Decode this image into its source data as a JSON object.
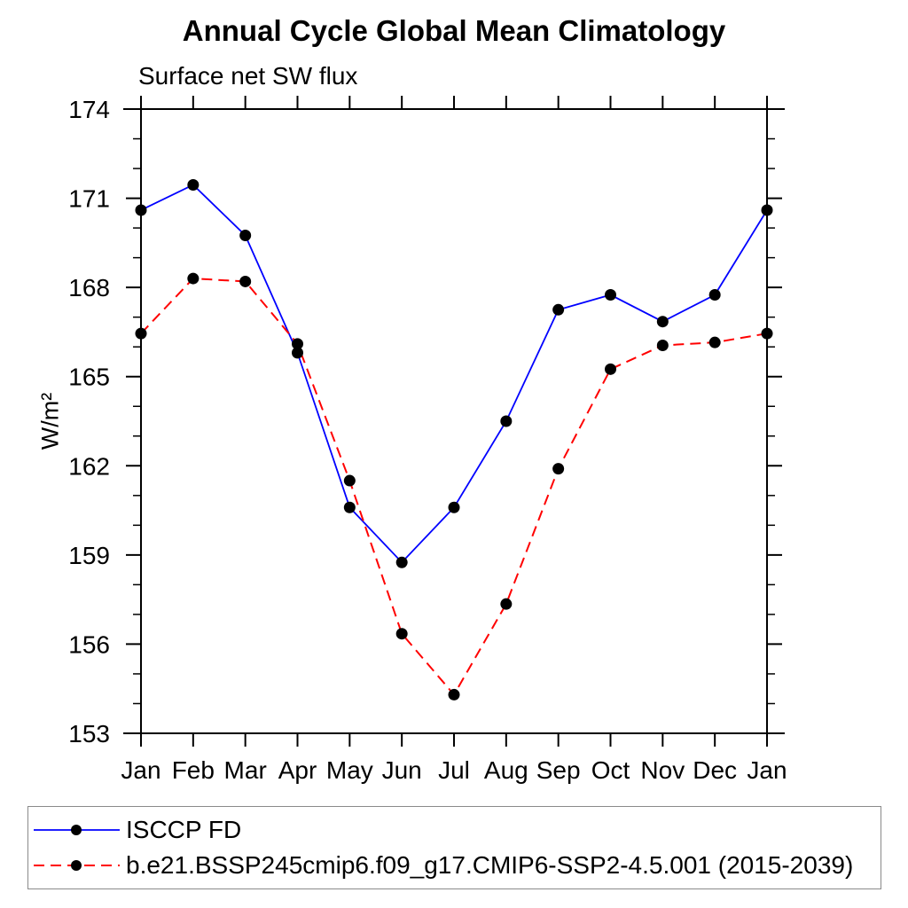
{
  "chart_data": {
    "type": "line",
    "title": "Annual Cycle Global Mean Climatology",
    "subtitle": "Surface net SW flux",
    "ylabel": "W/m²",
    "xlabel": "",
    "categories": [
      "Jan",
      "Feb",
      "Mar",
      "Apr",
      "May",
      "Jun",
      "Jul",
      "Aug",
      "Sep",
      "Oct",
      "Nov",
      "Dec",
      "Jan"
    ],
    "ylim": [
      153,
      174
    ],
    "ytick_major_step": 3,
    "ytick_minor_step": 1,
    "grid": false,
    "legend_position": "bottom-left-box",
    "axis_color": "#000000",
    "marker": "filled-circle",
    "marker_color": "#000000",
    "series": [
      {
        "name": "ISCCP FD",
        "color": "#0000ff",
        "line_style": "solid",
        "values": [
          170.6,
          171.45,
          169.75,
          165.8,
          160.6,
          158.75,
          160.6,
          163.5,
          167.25,
          167.75,
          166.85,
          167.75,
          170.6
        ]
      },
      {
        "name": "b.e21.BSSP245cmip6.f09_g17.CMIP6-SSP2-4.5.001 (2015-2039)",
        "color": "#ff0000",
        "line_style": "dashed",
        "values": [
          166.45,
          168.3,
          168.2,
          166.1,
          161.5,
          156.35,
          154.3,
          157.35,
          161.9,
          165.25,
          166.05,
          166.15,
          166.45
        ]
      }
    ]
  }
}
